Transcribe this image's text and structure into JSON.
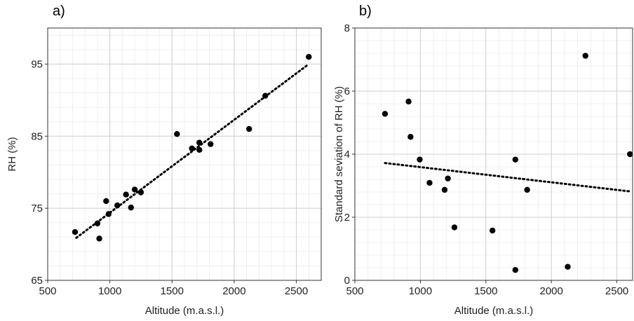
{
  "chart_data": [
    {
      "type": "scatter",
      "panel_label": "a)",
      "xlabel": "Altitude (m.a.s.l.)",
      "ylabel": "RH (%)",
      "xlim": [
        500,
        2700
      ],
      "ylim": [
        65,
        100
      ],
      "xticks": [
        500,
        1000,
        1500,
        2000,
        2500
      ],
      "yticks": [
        65,
        75,
        85,
        95
      ],
      "grid": true,
      "trendline": {
        "style": "dotted",
        "x": [
          730,
          2600
        ],
        "y": [
          70.9,
          95.0
        ]
      },
      "points": [
        {
          "x": 720,
          "y": 71.7
        },
        {
          "x": 900,
          "y": 72.9
        },
        {
          "x": 915,
          "y": 70.8
        },
        {
          "x": 970,
          "y": 76.0
        },
        {
          "x": 990,
          "y": 74.2
        },
        {
          "x": 1060,
          "y": 75.4
        },
        {
          "x": 1130,
          "y": 76.9
        },
        {
          "x": 1170,
          "y": 75.1
        },
        {
          "x": 1200,
          "y": 77.6
        },
        {
          "x": 1250,
          "y": 77.2
        },
        {
          "x": 1540,
          "y": 85.3
        },
        {
          "x": 1660,
          "y": 83.3
        },
        {
          "x": 1720,
          "y": 84.1
        },
        {
          "x": 1720,
          "y": 83.1
        },
        {
          "x": 1810,
          "y": 83.9
        },
        {
          "x": 2120,
          "y": 86.0
        },
        {
          "x": 2250,
          "y": 90.6
        },
        {
          "x": 2600,
          "y": 96.0
        }
      ]
    },
    {
      "type": "scatter",
      "panel_label": "b)",
      "xlabel": "Altitude (m.a.s.l.)",
      "ylabel": "Standard seviation of RH (%)",
      "xlim": [
        500,
        2620
      ],
      "ylim": [
        0,
        8
      ],
      "xticks": [
        500,
        1000,
        1500,
        2000,
        2500
      ],
      "yticks": [
        0,
        2,
        4,
        6,
        8
      ],
      "grid": true,
      "trendline": {
        "style": "dotted",
        "x": [
          730,
          2600
        ],
        "y": [
          3.72,
          2.82
        ]
      },
      "points": [
        {
          "x": 730,
          "y": 5.28
        },
        {
          "x": 910,
          "y": 5.67
        },
        {
          "x": 925,
          "y": 4.55
        },
        {
          "x": 995,
          "y": 3.83
        },
        {
          "x": 1070,
          "y": 3.09
        },
        {
          "x": 1185,
          "y": 2.87
        },
        {
          "x": 1210,
          "y": 3.23
        },
        {
          "x": 1260,
          "y": 1.68
        },
        {
          "x": 1550,
          "y": 1.58
        },
        {
          "x": 1725,
          "y": 3.83
        },
        {
          "x": 1725,
          "y": 0.33
        },
        {
          "x": 1815,
          "y": 2.87
        },
        {
          "x": 2125,
          "y": 0.43
        },
        {
          "x": 2260,
          "y": 7.12
        },
        {
          "x": 2600,
          "y": 4.0
        }
      ]
    }
  ]
}
